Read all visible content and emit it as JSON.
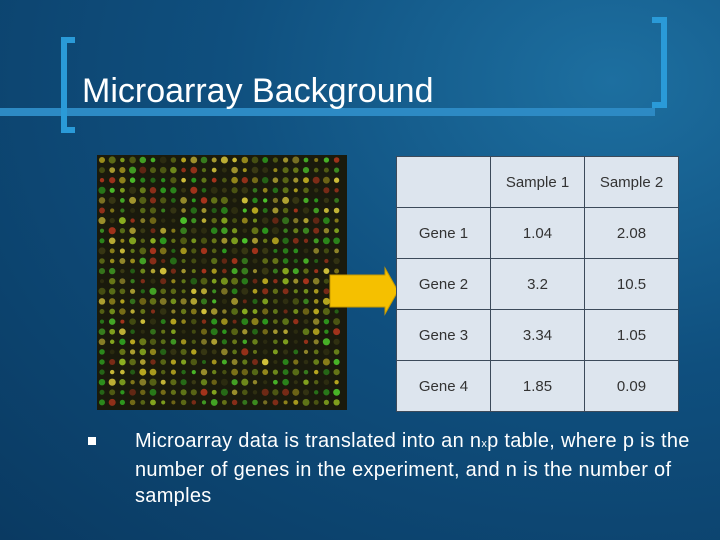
{
  "slide": {
    "title": "Microarray Background",
    "table": {
      "header": [
        "Sample 1",
        "Sample 2"
      ],
      "rows": [
        [
          "Gene 1",
          "1.04",
          "2.08"
        ],
        [
          "Gene 2",
          "3.2",
          "10.5"
        ],
        [
          "Gene 3",
          "3.34",
          "1.05"
        ],
        [
          "Gene 4",
          "1.85",
          "0.09"
        ]
      ]
    },
    "bullet": [
      "Microarray data is translated into an n",
      "x",
      "p table, where p is the number of genes in the experiment, and n is the number of samples"
    ]
  }
}
